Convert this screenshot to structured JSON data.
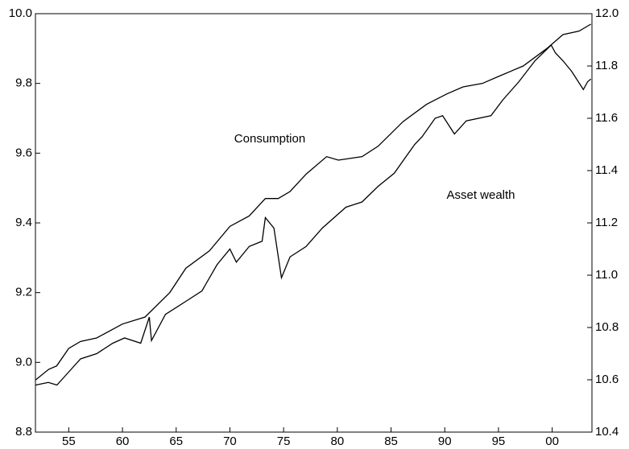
{
  "chart_data": {
    "type": "line",
    "annotations": [
      "Consumption",
      "Asset wealth"
    ],
    "xlim": [
      1951.9,
      2003.7
    ],
    "xticks": [
      {
        "value": 1955,
        "label": "55"
      },
      {
        "value": 1960,
        "label": "60"
      },
      {
        "value": 1965,
        "label": "65"
      },
      {
        "value": 1970,
        "label": "70"
      },
      {
        "value": 1975,
        "label": "75"
      },
      {
        "value": 1980,
        "label": "80"
      },
      {
        "value": 1985,
        "label": "85"
      },
      {
        "value": 1990,
        "label": "90"
      },
      {
        "value": 1995,
        "label": "95"
      },
      {
        "value": 2000,
        "label": "00"
      }
    ],
    "ylim": [
      8.8,
      10.0
    ],
    "yticks": [
      8.8,
      {
        "value": 9.0,
        "label": "9.0"
      },
      9.2,
      9.4,
      9.6,
      9.8,
      {
        "value": 10.0,
        "label": "10.0"
      }
    ],
    "y2lim": [
      10.4,
      12.0
    ],
    "y2ticks": [
      10.4,
      10.6,
      10.8,
      {
        "value": 11.0,
        "label": "11.0"
      },
      11.2,
      11.4,
      11.6,
      11.8,
      {
        "value": 12.0,
        "label": "12.0"
      }
    ],
    "series": [
      {
        "color": "#000000",
        "x": [
          1951.93,
          1953.13,
          1953.88,
          1955,
          1956.1,
          1957.6,
          1960,
          1962.1,
          1964.4,
          1965.9,
          1968.1,
          1970,
          1971.8,
          1973.3,
          1974.5,
          1975.6,
          1977.1,
          1979,
          1980.1,
          1982.3,
          1983.8,
          1986.1,
          1988.3,
          1990.2,
          1991.7,
          1993.5,
          1995,
          1997.3,
          1999.5,
          2001,
          2002.5,
          2003.6
        ],
        "values": [
          8.95,
          8.98,
          8.99,
          9.04,
          9.06,
          9.07,
          9.11,
          9.13,
          9.2,
          9.27,
          9.32,
          9.39,
          9.42,
          9.47,
          9.47,
          9.49,
          9.54,
          9.59,
          9.58,
          9.59,
          9.62,
          9.69,
          9.74,
          9.77,
          9.79,
          9.8,
          9.82,
          9.85,
          9.9,
          9.94,
          9.95,
          9.97
        ]
      },
      {
        "color": "#000000",
        "axis": "y2",
        "x": [
          1951.93,
          1953.1,
          1953.9,
          1955,
          1956.1,
          1957.6,
          1959.1,
          1960.2,
          1961.7,
          1962.5,
          1962.7,
          1964,
          1965.9,
          1967.4,
          1968.8,
          1970,
          1970.6,
          1971.8,
          1973,
          1973.3,
          1974.1,
          1974.8,
          1975.6,
          1977.1,
          1978.6,
          1980.8,
          1982.3,
          1983.8,
          1985.3,
          1987.2,
          1987.9,
          1989.1,
          1989.8,
          1990.9,
          1992,
          1994.3,
          1995.4,
          1996.9,
          1998.4,
          1999.9,
          2000.3,
          2001,
          2001.8,
          2002.9,
          2003.3,
          2003.6
        ],
        "values": [
          10.58,
          10.59,
          10.58,
          10.63,
          10.68,
          10.7,
          10.74,
          10.76,
          10.74,
          10.84,
          10.75,
          10.85,
          10.9,
          10.94,
          11.04,
          11.1,
          11.05,
          11.11,
          11.13,
          11.22,
          11.18,
          10.99,
          11.07,
          11.11,
          11.18,
          11.26,
          11.28,
          11.34,
          11.39,
          11.5,
          11.53,
          11.6,
          11.61,
          11.54,
          11.59,
          11.61,
          11.67,
          11.74,
          11.82,
          11.88,
          11.85,
          11.82,
          11.78,
          11.71,
          11.74,
          11.75
        ]
      }
    ]
  }
}
